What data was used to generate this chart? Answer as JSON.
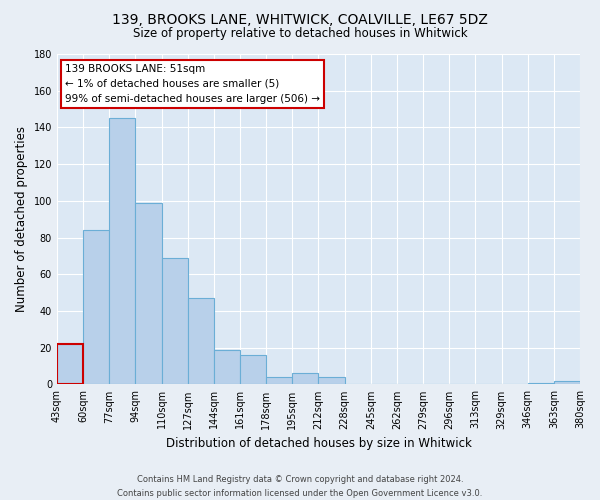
{
  "title": "139, BROOKS LANE, WHITWICK, COALVILLE, LE67 5DZ",
  "subtitle": "Size of property relative to detached houses in Whitwick",
  "xlabel": "Distribution of detached houses by size in Whitwick",
  "ylabel": "Number of detached properties",
  "bar_values": [
    22,
    84,
    145,
    99,
    69,
    47,
    19,
    16,
    4,
    6,
    4,
    0,
    0,
    0,
    0,
    0,
    0,
    0,
    1,
    2
  ],
  "bar_labels": [
    "43sqm",
    "60sqm",
    "77sqm",
    "94sqm",
    "110sqm",
    "127sqm",
    "144sqm",
    "161sqm",
    "178sqm",
    "195sqm",
    "212sqm",
    "228sqm",
    "245sqm",
    "262sqm",
    "279sqm",
    "296sqm",
    "313sqm",
    "329sqm",
    "346sqm",
    "363sqm",
    "380sqm"
  ],
  "bar_color": "#b8d0ea",
  "bar_edge_color": "#6baed6",
  "highlight_edge_color": "#cc0000",
  "ylim": [
    0,
    180
  ],
  "yticks": [
    0,
    20,
    40,
    60,
    80,
    100,
    120,
    140,
    160,
    180
  ],
  "annotation_title": "139 BROOKS LANE: 51sqm",
  "annotation_line1": "← 1% of detached houses are smaller (5)",
  "annotation_line2": "99% of semi-detached houses are larger (506) →",
  "annotation_box_color": "#ffffff",
  "annotation_box_edge": "#cc0000",
  "footer_line1": "Contains HM Land Registry data © Crown copyright and database right 2024.",
  "footer_line2": "Contains public sector information licensed under the Open Government Licence v3.0.",
  "background_color": "#e8eef5",
  "plot_bg_color": "#dce8f4",
  "grid_color": "#ffffff",
  "title_fontsize": 10,
  "subtitle_fontsize": 8.5,
  "axis_label_fontsize": 8.5,
  "tick_fontsize": 7,
  "annotation_fontsize": 7.5,
  "footer_fontsize": 6
}
